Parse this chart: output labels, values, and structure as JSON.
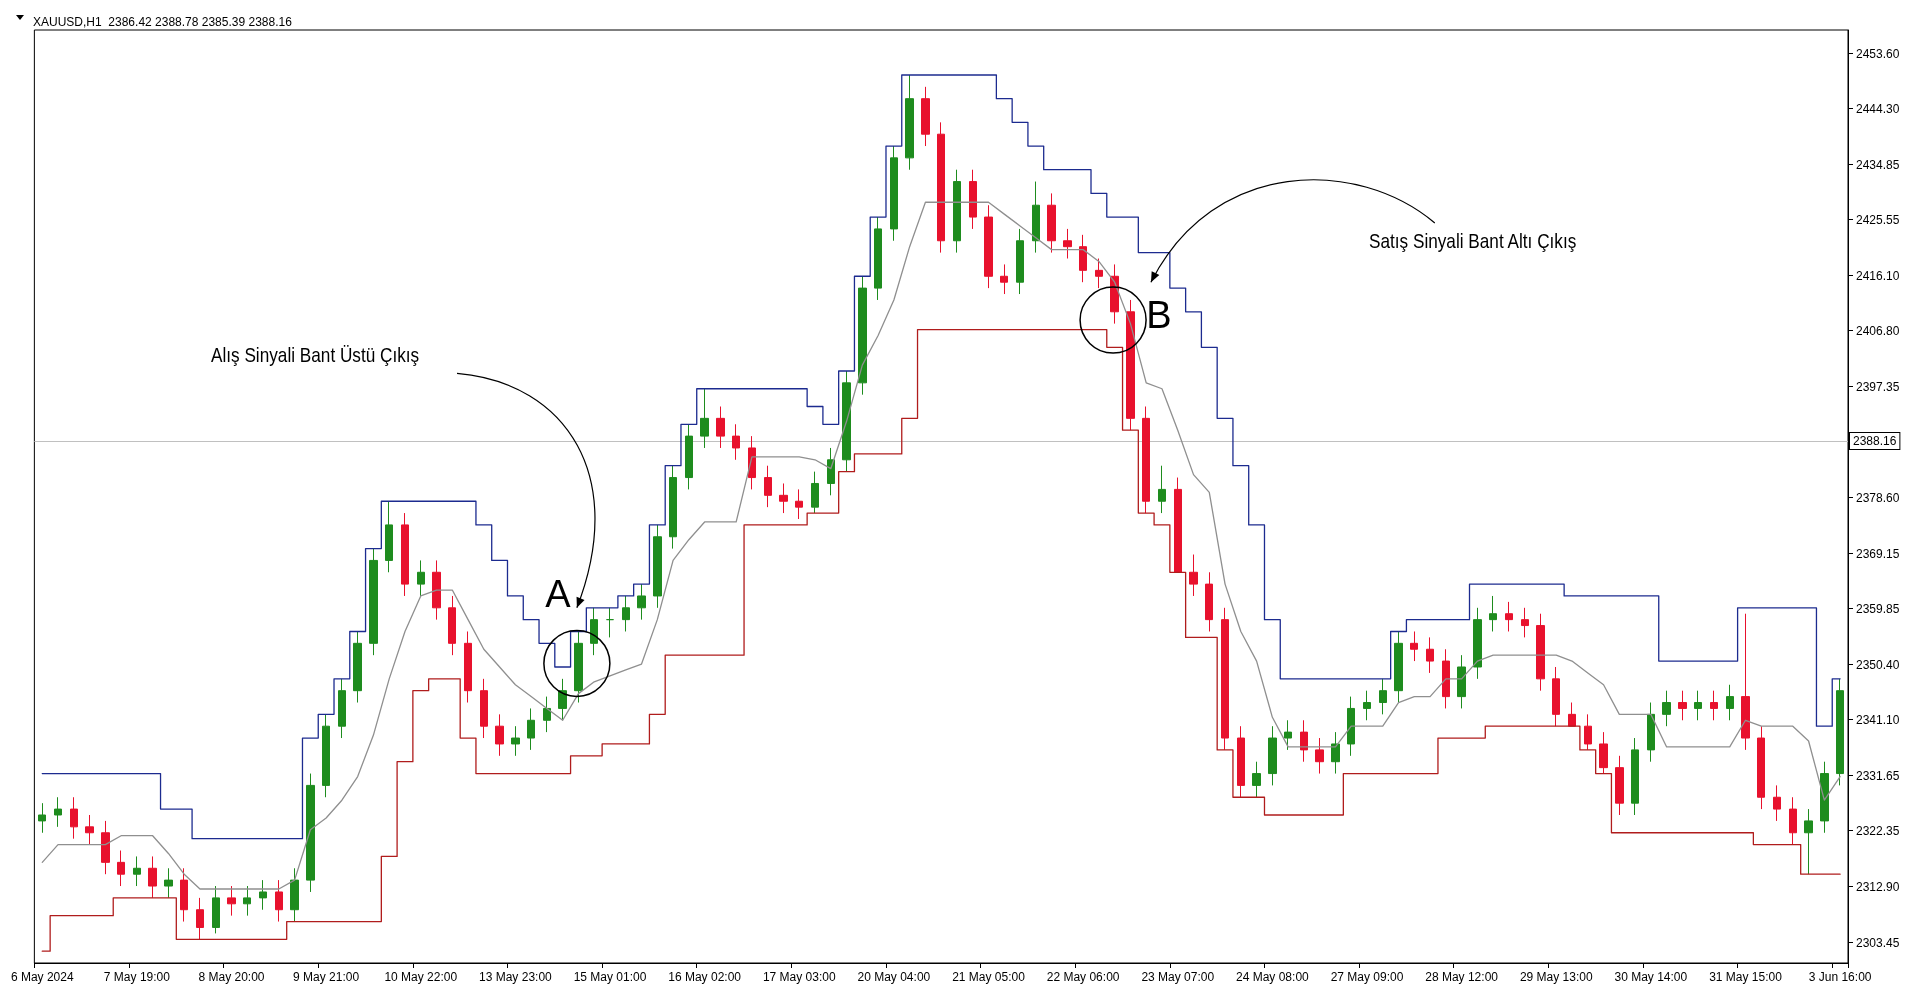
{
  "chart_data": {
    "type": "candlestick",
    "title": "XAUUSD,H1  2386.42 2388.78 2385.39 2388.16",
    "categories": [
      "6 May 2024",
      null,
      null,
      null,
      null,
      null,
      "7 May 19:00",
      null,
      null,
      null,
      null,
      null,
      "8 May 20:00",
      null,
      null,
      null,
      null,
      null,
      "9 May 21:00",
      null,
      null,
      null,
      null,
      null,
      "10 May 22:00",
      null,
      null,
      null,
      null,
      null,
      "13 May 23:00",
      null,
      null,
      null,
      null,
      null,
      "15 May 01:00",
      null,
      null,
      null,
      null,
      null,
      "16 May 02:00",
      null,
      null,
      null,
      null,
      null,
      "17 May 03:00",
      null,
      null,
      null,
      null,
      null,
      "20 May 04:00",
      null,
      null,
      null,
      null,
      null,
      "21 May 05:00",
      null,
      null,
      null,
      null,
      null,
      "22 May 06:00",
      null,
      null,
      null,
      null,
      null,
      "23 May 07:00",
      null,
      null,
      null,
      null,
      null,
      "24 May 08:00",
      null,
      null,
      null,
      null,
      null,
      "27 May 09:00",
      null,
      null,
      null,
      null,
      null,
      "28 May 12:00",
      null,
      null,
      null,
      null,
      null,
      "29 May 13:00",
      null,
      null,
      null,
      null,
      null,
      "30 May 14:00",
      null,
      null,
      null,
      null,
      null,
      "31 May 15:00",
      null,
      null,
      null,
      null,
      null,
      "3 Jun 16:00"
    ],
    "ohlc": [
      [
        2324,
        2327,
        2322,
        2325
      ],
      [
        2325,
        2328,
        2323,
        2326
      ],
      [
        2326,
        2328,
        2321,
        2323
      ],
      [
        2323,
        2325,
        2320,
        2322
      ],
      [
        2322,
        2324,
        2315,
        2317
      ],
      [
        2317,
        2319,
        2313,
        2315
      ],
      [
        2315,
        2318,
        2313,
        2316
      ],
      [
        2316,
        2318,
        2311,
        2313
      ],
      [
        2313,
        2316,
        2311,
        2314
      ],
      [
        2314,
        2316,
        2307,
        2309
      ],
      [
        2309,
        2311,
        2304,
        2306
      ],
      [
        2306,
        2313,
        2305,
        2311
      ],
      [
        2311,
        2313,
        2308,
        2310
      ],
      [
        2310,
        2313,
        2308,
        2311
      ],
      [
        2311,
        2314,
        2309,
        2312
      ],
      [
        2312,
        2314,
        2307,
        2309
      ],
      [
        2309,
        2316,
        2307,
        2314
      ],
      [
        2314,
        2332,
        2312,
        2330
      ],
      [
        2330,
        2342,
        2328,
        2340
      ],
      [
        2340,
        2348,
        2338,
        2346
      ],
      [
        2346,
        2356,
        2344,
        2354
      ],
      [
        2354,
        2370,
        2352,
        2368
      ],
      [
        2368,
        2378,
        2366,
        2374
      ],
      [
        2374,
        2376,
        2362,
        2364
      ],
      [
        2364,
        2368,
        2362,
        2366
      ],
      [
        2366,
        2368,
        2358,
        2360
      ],
      [
        2360,
        2362,
        2352,
        2354
      ],
      [
        2354,
        2356,
        2344,
        2346
      ],
      [
        2346,
        2348,
        2338,
        2340
      ],
      [
        2340,
        2342,
        2335,
        2337
      ],
      [
        2337,
        2340,
        2335,
        2338
      ],
      [
        2338,
        2343,
        2336,
        2341
      ],
      [
        2341,
        2345,
        2339,
        2343
      ],
      [
        2343,
        2348,
        2341,
        2346
      ],
      [
        2346,
        2356,
        2344,
        2354
      ],
      [
        2354,
        2360,
        2352,
        2358
      ],
      [
        2358,
        2360,
        2355,
        2358
      ],
      [
        2358,
        2362,
        2356,
        2360
      ],
      [
        2360,
        2364,
        2358,
        2362
      ],
      [
        2362,
        2374,
        2360,
        2372
      ],
      [
        2372,
        2384,
        2370,
        2382
      ],
      [
        2382,
        2391,
        2380,
        2389
      ],
      [
        2389,
        2397,
        2387,
        2392
      ],
      [
        2392,
        2394,
        2387,
        2389
      ],
      [
        2389,
        2391,
        2385,
        2387
      ],
      [
        2387,
        2389,
        2380,
        2382
      ],
      [
        2382,
        2384,
        2377,
        2379
      ],
      [
        2379,
        2381,
        2376,
        2378
      ],
      [
        2378,
        2380,
        2375,
        2377
      ],
      [
        2377,
        2383,
        2376,
        2381
      ],
      [
        2381,
        2387,
        2379,
        2385
      ],
      [
        2385,
        2400,
        2383,
        2398
      ],
      [
        2398,
        2416,
        2396,
        2414
      ],
      [
        2414,
        2426,
        2412,
        2424
      ],
      [
        2424,
        2438,
        2422,
        2436
      ],
      [
        2436,
        2450,
        2434,
        2446
      ],
      [
        2446,
        2448,
        2438,
        2440
      ],
      [
        2440,
        2442,
        2420,
        2422
      ],
      [
        2422,
        2434,
        2420,
        2432
      ],
      [
        2432,
        2434,
        2424,
        2426
      ],
      [
        2426,
        2428,
        2414,
        2416
      ],
      [
        2416,
        2418,
        2413,
        2415
      ],
      [
        2415,
        2424,
        2413,
        2422
      ],
      [
        2422,
        2432,
        2420,
        2428
      ],
      [
        2428,
        2430,
        2420,
        2422
      ],
      [
        2422,
        2424,
        2419,
        2421
      ],
      [
        2421,
        2423,
        2415,
        2417
      ],
      [
        2417,
        2419,
        2414,
        2416
      ],
      [
        2416,
        2418,
        2408,
        2410
      ],
      [
        2410,
        2412,
        2390,
        2392
      ],
      [
        2392,
        2394,
        2376,
        2378
      ],
      [
        2378,
        2384,
        2376,
        2380
      ],
      [
        2380,
        2382,
        2366,
        2366
      ],
      [
        2366,
        2369,
        2362,
        2364
      ],
      [
        2364,
        2366,
        2356,
        2358
      ],
      [
        2358,
        2360,
        2336,
        2338
      ],
      [
        2338,
        2340,
        2328,
        2330
      ],
      [
        2330,
        2334,
        2328,
        2332
      ],
      [
        2332,
        2340,
        2330,
        2338
      ],
      [
        2338,
        2341,
        2336,
        2339
      ],
      [
        2339,
        2341,
        2334,
        2336
      ],
      [
        2336,
        2338,
        2332,
        2334
      ],
      [
        2334,
        2339,
        2332,
        2337
      ],
      [
        2337,
        2345,
        2335,
        2343
      ],
      [
        2343,
        2346,
        2341,
        2344
      ],
      [
        2344,
        2348,
        2342,
        2346
      ],
      [
        2346,
        2356,
        2344,
        2354
      ],
      [
        2354,
        2356,
        2351,
        2353
      ],
      [
        2353,
        2355,
        2349,
        2351
      ],
      [
        2351,
        2353,
        2343,
        2345
      ],
      [
        2345,
        2352,
        2343,
        2350
      ],
      [
        2350,
        2360,
        2348,
        2358
      ],
      [
        2358,
        2362,
        2356,
        2359
      ],
      [
        2359,
        2361,
        2356,
        2358
      ],
      [
        2358,
        2360,
        2355,
        2357
      ],
      [
        2357,
        2359,
        2346,
        2348
      ],
      [
        2348,
        2350,
        2340,
        2342
      ],
      [
        2342,
        2344,
        2340,
        2340
      ],
      [
        2340,
        2342,
        2336,
        2337
      ],
      [
        2337,
        2339,
        2332,
        2333
      ],
      [
        2333,
        2335,
        2325,
        2327
      ],
      [
        2327,
        2338,
        2325,
        2336
      ],
      [
        2336,
        2344,
        2334,
        2342
      ],
      [
        2342,
        2346,
        2340,
        2344
      ],
      [
        2344,
        2346,
        2341,
        2343
      ],
      [
        2343,
        2346,
        2341,
        2344
      ],
      [
        2344,
        2346,
        2341,
        2343
      ],
      [
        2343,
        2347,
        2341,
        2345
      ],
      [
        2345,
        2359,
        2336,
        2338
      ],
      [
        2338,
        2340,
        2326,
        2328
      ],
      [
        2328,
        2330,
        2324,
        2326
      ],
      [
        2326,
        2328,
        2320,
        2322
      ],
      [
        2322,
        2326,
        2315,
        2324
      ],
      [
        2324,
        2334,
        2322,
        2332
      ],
      [
        2332,
        2348,
        2330,
        2346
      ]
    ],
    "series": [
      {
        "type": "step",
        "color": "#1c2b8f",
        "values": [
          2332,
          2332,
          2332,
          2332,
          2332,
          2332,
          2332,
          2332,
          2326,
          2326,
          2321,
          2321,
          2321,
          2321,
          2321,
          2321,
          2321,
          2338,
          2342,
          2348,
          2356,
          2370,
          2378,
          2378,
          2378,
          2378,
          2378,
          2378,
          2374,
          2368,
          2362,
          2358,
          2354,
          2350,
          2356,
          2360,
          2360,
          2362,
          2364,
          2374,
          2384,
          2391,
          2397,
          2397,
          2397,
          2397,
          2397,
          2397,
          2397,
          2394,
          2391,
          2400,
          2416,
          2426,
          2438,
          2450,
          2450,
          2450,
          2450,
          2450,
          2450,
          2446,
          2442,
          2438,
          2434,
          2434,
          2434,
          2430,
          2426,
          2426,
          2420,
          2420,
          2414,
          2410,
          2404,
          2392,
          2384,
          2374,
          2358,
          2348,
          2348,
          2348,
          2348,
          2348,
          2348,
          2348,
          2356,
          2358,
          2358,
          2358,
          2358,
          2364,
          2364,
          2364,
          2364,
          2364,
          2364,
          2362,
          2362,
          2362,
          2362,
          2362,
          2362,
          2351,
          2351,
          2351,
          2351,
          2351,
          2360,
          2360,
          2360,
          2360,
          2360,
          2340,
          2348
        ]
      },
      {
        "type": "step",
        "color": "#b01c1c",
        "values": [
          2302,
          2308,
          2308,
          2308,
          2308,
          2311,
          2311,
          2311,
          2311,
          2304,
          2304,
          2304,
          2304,
          2304,
          2304,
          2304,
          2307,
          2307,
          2307,
          2307,
          2307,
          2307,
          2318,
          2334,
          2346,
          2348,
          2348,
          2338,
          2332,
          2332,
          2332,
          2332,
          2332,
          2332,
          2335,
          2335,
          2337,
          2337,
          2337,
          2342,
          2352,
          2352,
          2352,
          2352,
          2352,
          2374,
          2374,
          2374,
          2374,
          2376,
          2376,
          2383,
          2386,
          2386,
          2386,
          2392,
          2407,
          2407,
          2407,
          2407,
          2407,
          2407,
          2407,
          2407,
          2407,
          2407,
          2407,
          2407,
          2404,
          2390,
          2376,
          2374,
          2366,
          2355,
          2355,
          2336,
          2328,
          2328,
          2325,
          2325,
          2325,
          2325,
          2325,
          2332,
          2332,
          2332,
          2332,
          2332,
          2332,
          2338,
          2338,
          2338,
          2340,
          2340,
          2340,
          2340,
          2340,
          2340,
          2336,
          2332,
          2322,
          2322,
          2322,
          2322,
          2322,
          2322,
          2322,
          2322,
          2322,
          2320,
          2320,
          2320,
          2315,
          2315,
          2315
        ]
      },
      {
        "type": "line",
        "color": "#8f8f8f",
        "values": [
          2317,
          2320,
          2320,
          2320,
          2320,
          2321.5,
          2321.5,
          2321.5,
          2318.5,
          2315,
          2312.5,
          2312.5,
          2312.5,
          2312.5,
          2312.5,
          2312.5,
          2314,
          2322.5,
          2324.5,
          2327.5,
          2331.5,
          2338.5,
          2348,
          2356,
          2362,
          2363,
          2363,
          2358,
          2353,
          2350,
          2347,
          2345,
          2343,
          2341,
          2345.5,
          2347.5,
          2348.5,
          2349.5,
          2350.5,
          2358,
          2368,
          2371.5,
          2374.5,
          2374.5,
          2374.5,
          2385.5,
          2385.5,
          2385.5,
          2385.5,
          2385,
          2383.5,
          2391.5,
          2401,
          2406,
          2412,
          2421,
          2428.5,
          2428.5,
          2428.5,
          2428.5,
          2428.5,
          2426.5,
          2424.5,
          2422.5,
          2420.5,
          2420.5,
          2420.5,
          2418.5,
          2415,
          2408,
          2398,
          2397,
          2390,
          2382.5,
          2379.5,
          2364,
          2356,
          2351,
          2341.5,
          2336.5,
          2336.5,
          2336.5,
          2336.5,
          2340,
          2340,
          2340,
          2344,
          2345,
          2345,
          2348,
          2348,
          2351,
          2352,
          2352,
          2352,
          2352,
          2352,
          2351,
          2349,
          2347,
          2342,
          2342,
          2342,
          2336.5,
          2336.5,
          2336.5,
          2336.5,
          2336.5,
          2341,
          2340,
          2340,
          2340,
          2337.5,
          2327.5,
          2331.5
        ]
      }
    ],
    "ylim": [
      2300,
      2457.6
    ],
    "yticks": [
      2303.45,
      {
        "value": 2312.9,
        "label": "2312.90"
      },
      2322.35,
      2331.65,
      {
        "value": 2341.1,
        "label": "2341.10"
      },
      {
        "value": 2350.4,
        "label": "2350.40"
      },
      2359.85,
      2369.15,
      {
        "value": 2378.6,
        "label": "2378.60"
      },
      2397.35,
      {
        "value": 2406.8,
        "label": "2406.80"
      },
      {
        "value": 2416.1,
        "label": "2416.10"
      },
      2425.55,
      2434.85,
      {
        "value": 2444.3,
        "label": "2444.30"
      },
      {
        "value": 2453.6,
        "label": "2453.60"
      }
    ],
    "ref_lines": [
      {
        "axis": "y",
        "value": 2388.16,
        "label": "2388.16",
        "color": "#c0c0c0"
      }
    ],
    "annotations": [
      "Alış Sinyali Bant Üstü Çıkış",
      "Satış Sinyali Bant Altı Çıkış",
      "A",
      "B"
    ],
    "grid": false
  }
}
